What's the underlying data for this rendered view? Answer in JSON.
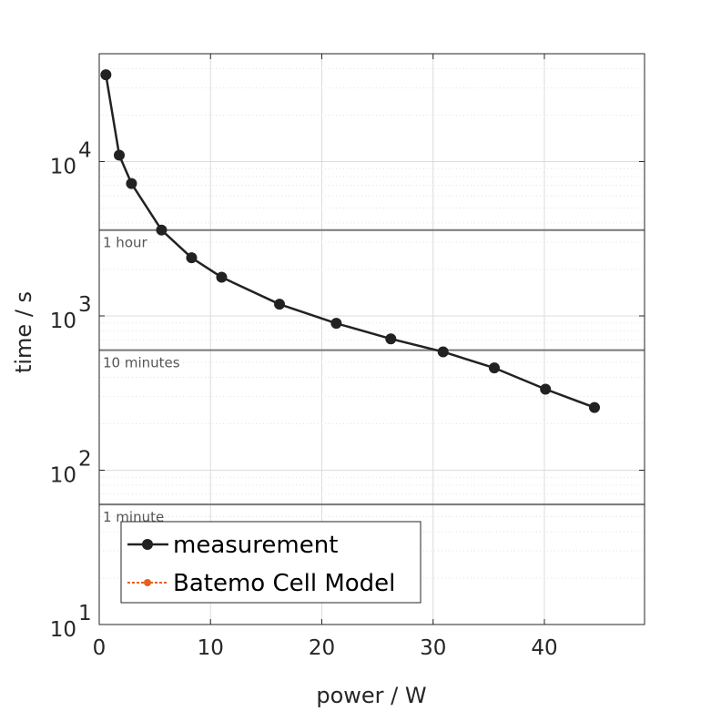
{
  "chart_data": {
    "type": "line",
    "xlabel": "power / W",
    "ylabel": "time / s",
    "xlim": [
      0,
      49
    ],
    "ylim": [
      10,
      50000
    ],
    "yscale": "log",
    "grid": true,
    "xticks": [
      0,
      10,
      20,
      30,
      40
    ],
    "xtick_labels": [
      "0",
      "10",
      "20",
      "30",
      "40"
    ],
    "yticks": [
      10,
      100,
      1000,
      10000
    ],
    "ytick_labels": [
      {
        "base": "10",
        "exp": "1"
      },
      {
        "base": "10",
        "exp": "2"
      },
      {
        "base": "10",
        "exp": "3"
      },
      {
        "base": "10",
        "exp": "4"
      }
    ],
    "reference_lines": [
      {
        "y": 3600,
        "label": "1 hour"
      },
      {
        "y": 600,
        "label": "10 minutes"
      },
      {
        "y": 60,
        "label": "1 minute"
      }
    ],
    "series": [
      {
        "name": "measurement",
        "color": "#222222",
        "x": [
          0.6,
          1.8,
          2.9,
          5.6,
          8.3,
          11.0,
          16.2,
          21.3,
          26.2,
          30.9,
          35.5,
          40.1,
          44.5
        ],
        "y": [
          36500,
          11000,
          7200,
          3600,
          2380,
          1780,
          1190,
          895,
          710,
          585,
          460,
          335,
          255
        ]
      },
      {
        "name": "Batemo Cell Model",
        "color": "#e8601c",
        "x": [],
        "y": []
      }
    ],
    "legend": "bottom-left"
  }
}
